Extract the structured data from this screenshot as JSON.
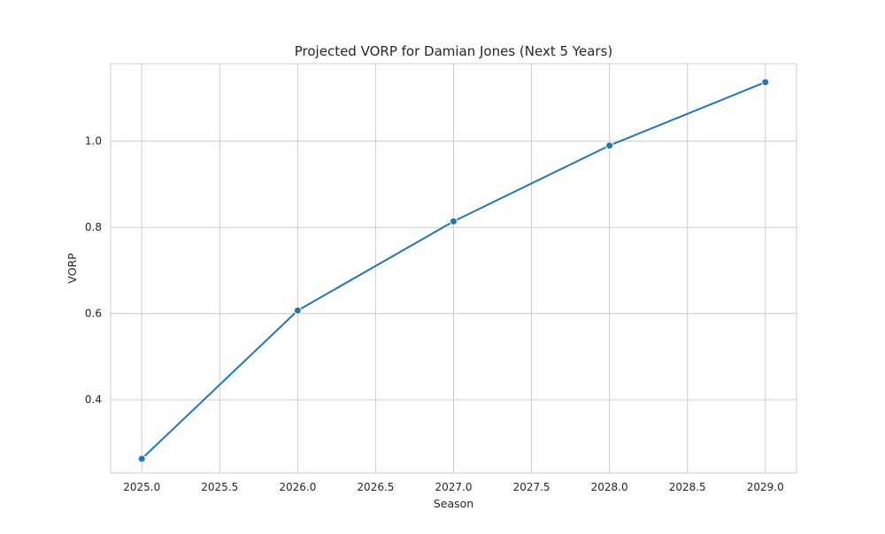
{
  "chart_data": {
    "type": "line",
    "title": "Projected VORP for Damian Jones (Next 5 Years)",
    "xlabel": "Season",
    "ylabel": "VORP",
    "x": [
      2025.0,
      2026.0,
      2027.0,
      2028.0,
      2029.0
    ],
    "series": [
      {
        "values": [
          0.263,
          0.607,
          0.814,
          0.99,
          1.137
        ],
        "color": "#1f77b4",
        "marker": "circle"
      }
    ],
    "xlim": [
      2024.8,
      2029.2
    ],
    "ylim": [
      0.23,
      1.18
    ],
    "xticks": [
      2025.0,
      2025.5,
      2026.0,
      2026.5,
      2027.0,
      2027.5,
      2028.0,
      2028.5,
      2029.0
    ],
    "xtick_labels": [
      "2025.0",
      "2025.5",
      "2026.0",
      "2026.5",
      "2027.0",
      "2027.5",
      "2028.0",
      "2028.5",
      "2029.0"
    ],
    "yticks": [
      0.4,
      0.6,
      0.8,
      1.0
    ],
    "ytick_labels": [
      "0.4",
      "0.6",
      "0.8",
      "1.0"
    ],
    "grid": true,
    "style": {
      "grid_color": "#cccccc",
      "frame_color": "#cccccc",
      "text_color": "#262626"
    }
  }
}
